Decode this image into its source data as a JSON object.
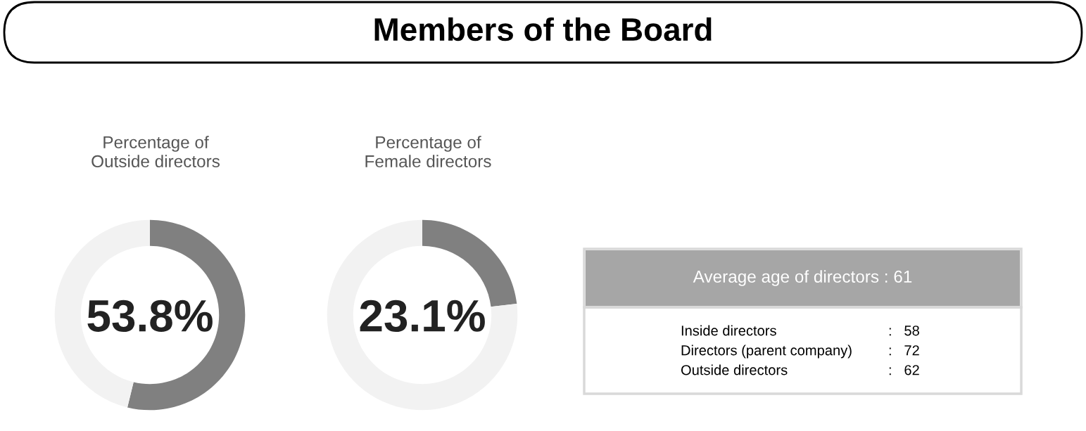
{
  "chart_data": [
    {
      "type": "other",
      "title": "Members of the Board"
    },
    {
      "type": "donut",
      "title": "Percentage of\nOutside directors",
      "categories": [
        null,
        null
      ],
      "values": [
        53.8,
        46.2
      ],
      "colors": [
        "#808080",
        "#f2f2f2"
      ],
      "annotations": [
        "53.8%"
      ]
    },
    {
      "type": "donut",
      "title": "Percentage of\nFemale directors",
      "categories": [
        null,
        null
      ],
      "values": [
        23.1,
        76.9
      ],
      "colors": [
        "#808080",
        "#f2f2f2"
      ],
      "annotations": [
        "23.1%"
      ]
    },
    {
      "type": "other",
      "title": "Average age of directors : 61",
      "annotations": [
        "Inside directors",
        ":   58",
        "Directors (parent company)",
        ":   72",
        "Outside directors",
        ":   62"
      ]
    }
  ]
}
